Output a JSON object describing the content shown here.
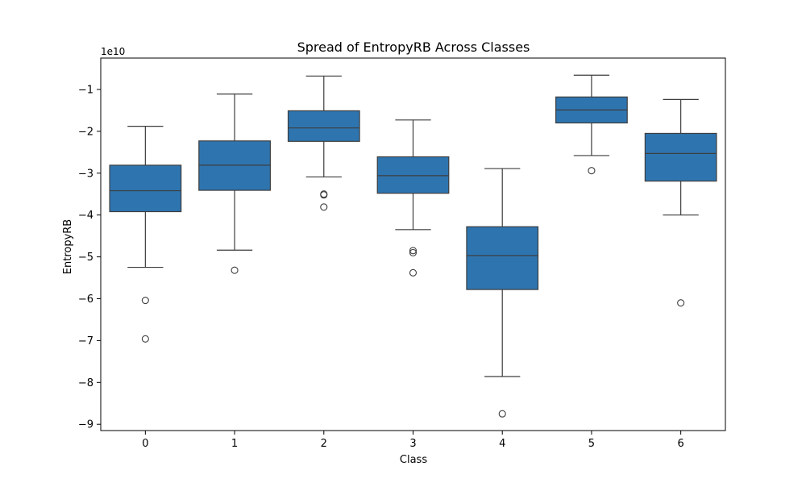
{
  "chart_data": {
    "type": "box",
    "title": "Spread of EntropyRB Across Classes",
    "xlabel": "Class",
    "ylabel": "EntropyRB",
    "y_offset_label": "1e10",
    "categories": [
      "0",
      "1",
      "2",
      "3",
      "4",
      "5",
      "6"
    ],
    "ylim": [
      -9.15,
      -0.25
    ],
    "y_ticks": [
      -9,
      -8,
      -7,
      -6,
      -5,
      -4,
      -3,
      -2,
      -1
    ],
    "y_tick_labels": [
      "−9",
      "−8",
      "−7",
      "−6",
      "−5",
      "−4",
      "−3",
      "−2",
      "−1"
    ],
    "boxes": [
      {
        "category": "0",
        "whisker_low": -5.25,
        "q1": -3.92,
        "median": -3.42,
        "q3": -2.81,
        "whisker_high": -1.88,
        "outliers": [
          -6.04,
          -6.96
        ]
      },
      {
        "category": "1",
        "whisker_low": -4.84,
        "q1": -3.41,
        "median": -2.81,
        "q3": -2.23,
        "whisker_high": -1.11,
        "outliers": [
          -5.32
        ]
      },
      {
        "category": "2",
        "whisker_low": -3.09,
        "q1": -2.24,
        "median": -1.92,
        "q3": -1.51,
        "whisker_high": -0.68,
        "outliers": [
          -3.5,
          -3.52,
          -3.81
        ]
      },
      {
        "category": "3",
        "whisker_low": -4.35,
        "q1": -3.48,
        "median": -3.06,
        "q3": -2.61,
        "whisker_high": -1.73,
        "outliers": [
          -4.85,
          -4.9,
          -5.38
        ]
      },
      {
        "category": "4",
        "whisker_low": -7.86,
        "q1": -5.78,
        "median": -4.97,
        "q3": -4.28,
        "whisker_high": -2.89,
        "outliers": [
          -8.75
        ]
      },
      {
        "category": "5",
        "whisker_low": -2.58,
        "q1": -1.8,
        "median": -1.49,
        "q3": -1.18,
        "whisker_high": -0.66,
        "outliers": [
          -2.94
        ]
      },
      {
        "category": "6",
        "whisker_low": -4.0,
        "q1": -3.19,
        "median": -2.53,
        "q3": -2.05,
        "whisker_high": -1.24,
        "outliers": [
          -6.1
        ]
      }
    ],
    "box_color": "#2e75b0",
    "line_color": "#3d3d3d",
    "grid": false
  }
}
